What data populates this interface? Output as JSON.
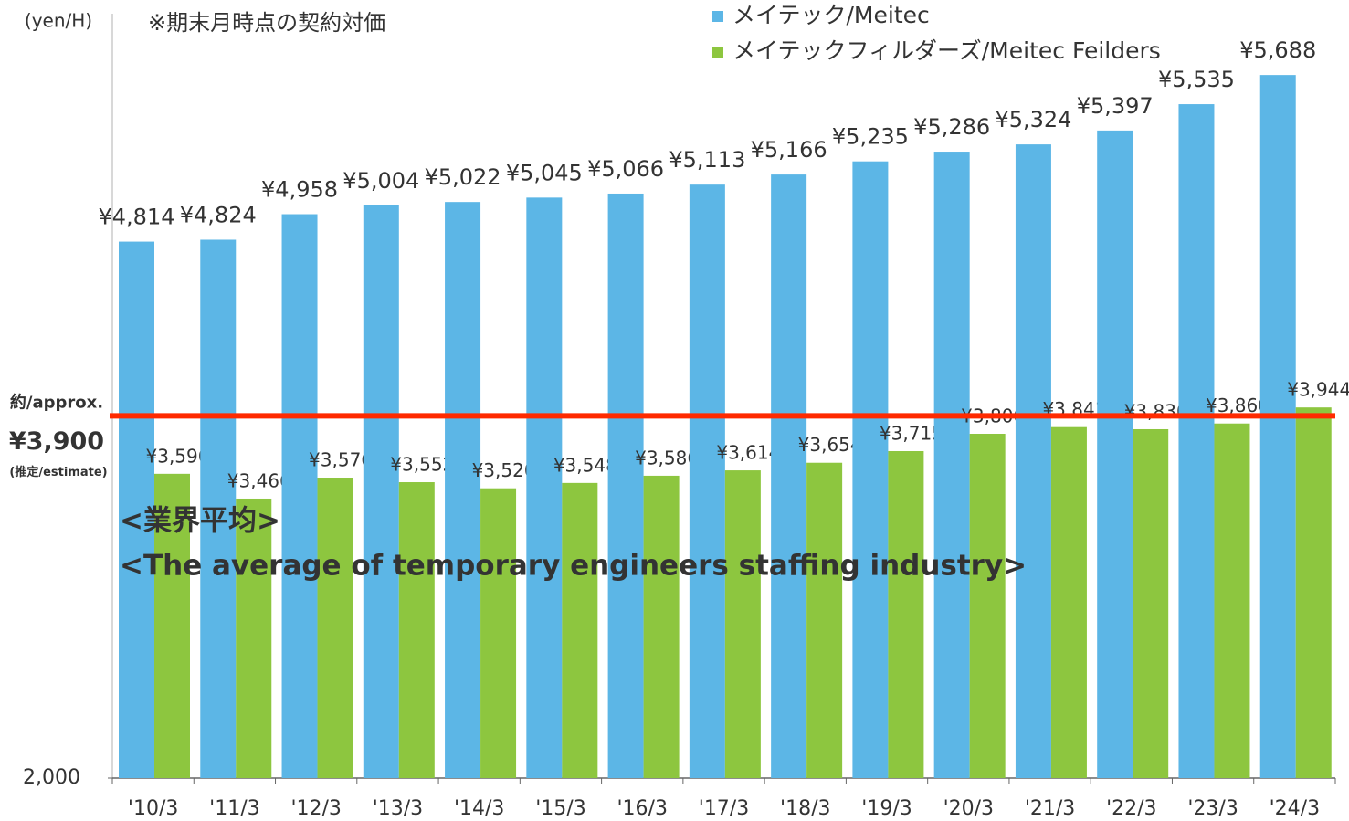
{
  "chart_data": {
    "type": "bar",
    "title": "※期末月時点の契約対価",
    "y_axis_label": "(yen/H)",
    "categories": [
      "'10/3",
      "'11/3",
      "'12/3",
      "'13/3",
      "'14/3",
      "'15/3",
      "'16/3",
      "'17/3",
      "'18/3",
      "'19/3",
      "'20/3",
      "'21/3",
      "'22/3",
      "'23/3",
      "'24/3"
    ],
    "series": [
      {
        "name": "メイテック/Meitec",
        "color": "#5cb6e6",
        "values": [
          4814,
          4824,
          4958,
          5004,
          5022,
          5045,
          5066,
          5113,
          5166,
          5235,
          5286,
          5324,
          5397,
          5535,
          5688
        ],
        "value_labels": [
          "¥4,814",
          "¥4,824",
          "¥4,958",
          "¥5,004",
          "¥5,022",
          "¥5,045",
          "¥5,066",
          "¥5,113",
          "¥5,166",
          "¥5,235",
          "¥5,286",
          "¥5,324",
          "¥5,397",
          "¥5,535",
          "¥5,688"
        ]
      },
      {
        "name": "メイテックフィルダーズ/Meitec Feilders",
        "color": "#8dc63f",
        "values": [
          3596,
          3466,
          3576,
          3552,
          3520,
          3548,
          3586,
          3614,
          3654,
          3715,
          3806,
          3841,
          3830,
          3860,
          3944
        ],
        "value_labels": [
          "¥3,596",
          "¥3,466",
          "¥3,576",
          "¥3,552",
          "¥3,520",
          "¥3,548",
          "¥3,586",
          "¥3,614",
          "¥3,654",
          "¥3,715",
          "¥3,806",
          "¥3,841",
          "¥3,830",
          "¥3,860",
          "¥3,944"
        ]
      }
    ],
    "ylim": [
      2000,
      6000
    ],
    "yticks": [
      {
        "value": 2000,
        "label": "2,000"
      }
    ],
    "grid": false,
    "legend": "top",
    "reference_line": {
      "value": 3900,
      "color": "#ff2a00",
      "prefix": "約/approx.",
      "label": "¥3,900",
      "note": "(推定/estimate)"
    },
    "annotations": [
      "<業界平均>",
      "<The average of temporary engineers staffing industry>"
    ]
  }
}
